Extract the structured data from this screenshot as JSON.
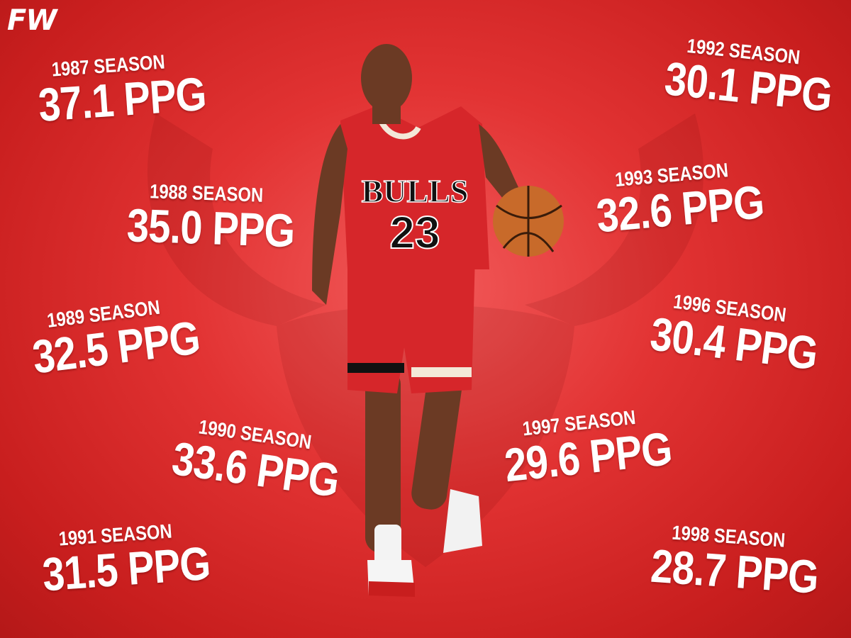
{
  "brand": {
    "logo_text": "FW"
  },
  "colors": {
    "background": "#e23333",
    "text": "#ffffff",
    "jersey": "#d6262a"
  },
  "player": {
    "jersey_team": "BULLS",
    "jersey_number": "23"
  },
  "stats": [
    {
      "season": "1987 SEASON",
      "ppg": "37.1 PPG"
    },
    {
      "season": "1988 SEASON",
      "ppg": "35.0 PPG"
    },
    {
      "season": "1989 SEASON",
      "ppg": "32.5 PPG"
    },
    {
      "season": "1990 SEASON",
      "ppg": "33.6 PPG"
    },
    {
      "season": "1991 SEASON",
      "ppg": "31.5 PPG"
    },
    {
      "season": "1992 SEASON",
      "ppg": "30.1 PPG"
    },
    {
      "season": "1993 SEASON",
      "ppg": "32.6 PPG"
    },
    {
      "season": "1996 SEASON",
      "ppg": "30.4 PPG"
    },
    {
      "season": "1997 SEASON",
      "ppg": "29.6 PPG"
    },
    {
      "season": "1998 SEASON",
      "ppg": "28.7 PPG"
    }
  ]
}
